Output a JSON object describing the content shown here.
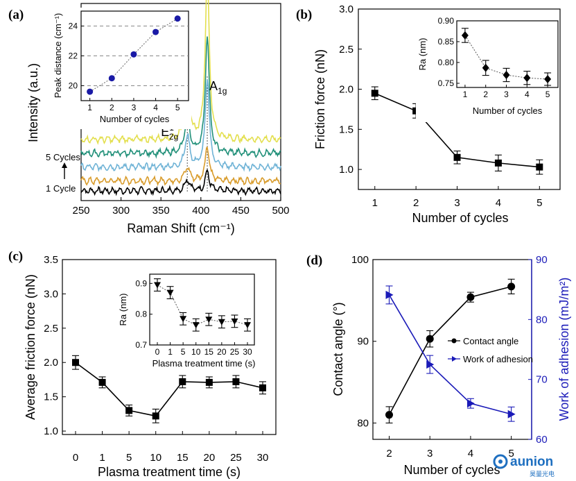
{
  "chart_data": [
    {
      "panel": "(a)",
      "type": "line",
      "xlabel": "Raman Shift (cm⁻¹)",
      "ylabel": "Intensity (a.u.)",
      "xlim": [
        250,
        500
      ],
      "xticks": [
        250,
        300,
        350,
        400,
        450,
        500
      ],
      "peaks": [
        {
          "label": "E",
          "sup": "1",
          "sub": "2g",
          "x": 383
        },
        {
          "label": "A",
          "sub": "1g",
          "x": 408
        }
      ],
      "annotations": {
        "top": "5 Cycles",
        "bottom": "1 Cycle"
      },
      "series": [
        {
          "color": "#000000",
          "offset": 0.05,
          "e2g": 0.06,
          "a1g": 0.1
        },
        {
          "color": "#d89b2a",
          "offset": 0.1,
          "e2g": 0.07,
          "a1g": 0.18
        },
        {
          "color": "#6fb3d6",
          "offset": 0.17,
          "e2g": 0.16,
          "a1g": 0.45
        },
        {
          "color": "#1f8f78",
          "offset": 0.24,
          "e2g": 0.19,
          "a1g": 0.6
        },
        {
          "color": "#e3df4d",
          "offset": 0.31,
          "e2g": 0.28,
          "a1g": 0.85
        }
      ],
      "inset": {
        "type": "scatter",
        "xlabel": "Number of cycles",
        "ylabel": "Peak distance (cm⁻¹)",
        "x": [
          1,
          2,
          3,
          4,
          5
        ],
        "y": [
          19.6,
          20.5,
          22.1,
          23.6,
          24.5
        ],
        "xlim": [
          0.6,
          5.5
        ],
        "ylim": [
          19,
          25
        ],
        "yticks": [
          20,
          22,
          24
        ],
        "color": "#1a1aa6"
      }
    },
    {
      "panel": "(b)",
      "type": "line",
      "xlabel": "Number of cycles",
      "ylabel": "Friction force (nN)",
      "x": [
        1,
        2,
        3,
        4,
        5
      ],
      "y": [
        1.95,
        1.73,
        1.15,
        1.08,
        1.03
      ],
      "err": [
        0.08,
        0.09,
        0.08,
        0.1,
        0.09
      ],
      "xlim": [
        0.6,
        5.5
      ],
      "ylim": [
        0.75,
        3.0
      ],
      "yticks": [
        1.0,
        1.5,
        2.0,
        2.5,
        3.0
      ],
      "ytick_labels": [
        "1.0",
        "1.5",
        "2.0",
        "2.5",
        "3.0"
      ],
      "inset": {
        "type": "scatter",
        "xlabel": "Number of cycles",
        "ylabel": "Ra (nm)",
        "x": [
          1,
          2,
          3,
          4,
          5
        ],
        "y": [
          0.865,
          0.787,
          0.77,
          0.763,
          0.76
        ],
        "err": [
          0.017,
          0.018,
          0.016,
          0.016,
          0.015
        ],
        "xlim": [
          0.6,
          5.5
        ],
        "ylim": [
          0.74,
          0.9
        ],
        "yticks": [
          0.75,
          0.8,
          0.85,
          0.9
        ],
        "ytick_labels": [
          "0.75",
          "0.80",
          "0.85",
          "0.90"
        ]
      }
    },
    {
      "panel": "(c)",
      "type": "line",
      "xlabel": "Plasma treatment time (s)",
      "ylabel": "Average friction force (nN)",
      "categories": [
        "0",
        "1",
        "5",
        "10",
        "15",
        "20",
        "25",
        "30"
      ],
      "values": [
        2.0,
        1.71,
        1.3,
        1.22,
        1.72,
        1.71,
        1.72,
        1.63
      ],
      "err": [
        0.1,
        0.08,
        0.08,
        0.1,
        0.09,
        0.08,
        0.09,
        0.09
      ],
      "ylim": [
        0.95,
        3.5
      ],
      "yticks": [
        1.0,
        1.5,
        2.0,
        2.5,
        3.0,
        3.5
      ],
      "ytick_labels": [
        "1.0",
        "1.5",
        "2.0",
        "2.5",
        "3.0",
        "3.5"
      ],
      "inset": {
        "type": "scatter",
        "xlabel": "Plasma treatment time (s)",
        "ylabel": "Ra (nm)",
        "categories": [
          "0",
          "1",
          "5",
          "10",
          "15",
          "20",
          "25",
          "30"
        ],
        "values": [
          0.895,
          0.87,
          0.785,
          0.765,
          0.783,
          0.775,
          0.777,
          0.765
        ],
        "err": [
          0.02,
          0.02,
          0.02,
          0.02,
          0.02,
          0.02,
          0.02,
          0.02
        ],
        "ylim": [
          0.7,
          0.93
        ],
        "yticks": [
          0.7,
          0.8,
          0.9
        ],
        "ytick_labels": [
          "0.7",
          "0.8",
          "0.9"
        ]
      }
    },
    {
      "panel": "(d)",
      "type": "line",
      "xlabel": "Number of cycles",
      "ylabel": "Contact angle (°)",
      "ylabel2": "Work of adhesion (mJ/m²)",
      "x": [
        2,
        3,
        4,
        5
      ],
      "xlim": [
        1.6,
        5.5
      ],
      "ylim": [
        78,
        100
      ],
      "yticks": [
        80,
        90,
        100
      ],
      "ylim2": [
        60,
        90
      ],
      "yticks2": [
        60,
        70,
        80,
        90
      ],
      "series": [
        {
          "name": "Contact angle",
          "axis": "left",
          "color": "#000000",
          "marker": "circle",
          "y": [
            81.0,
            90.3,
            95.4,
            96.7
          ],
          "err": [
            1.0,
            1.0,
            0.6,
            0.9
          ]
        },
        {
          "name": "Work of adhesion",
          "axis": "right",
          "color": "#1a1ab8",
          "marker": "triangle",
          "y": [
            84.1,
            72.5,
            66.0,
            64.2
          ],
          "err": [
            1.5,
            1.5,
            0.8,
            1.2
          ]
        }
      ]
    }
  ],
  "logo": {
    "name": "aunion",
    "sub": "昊量光电"
  }
}
